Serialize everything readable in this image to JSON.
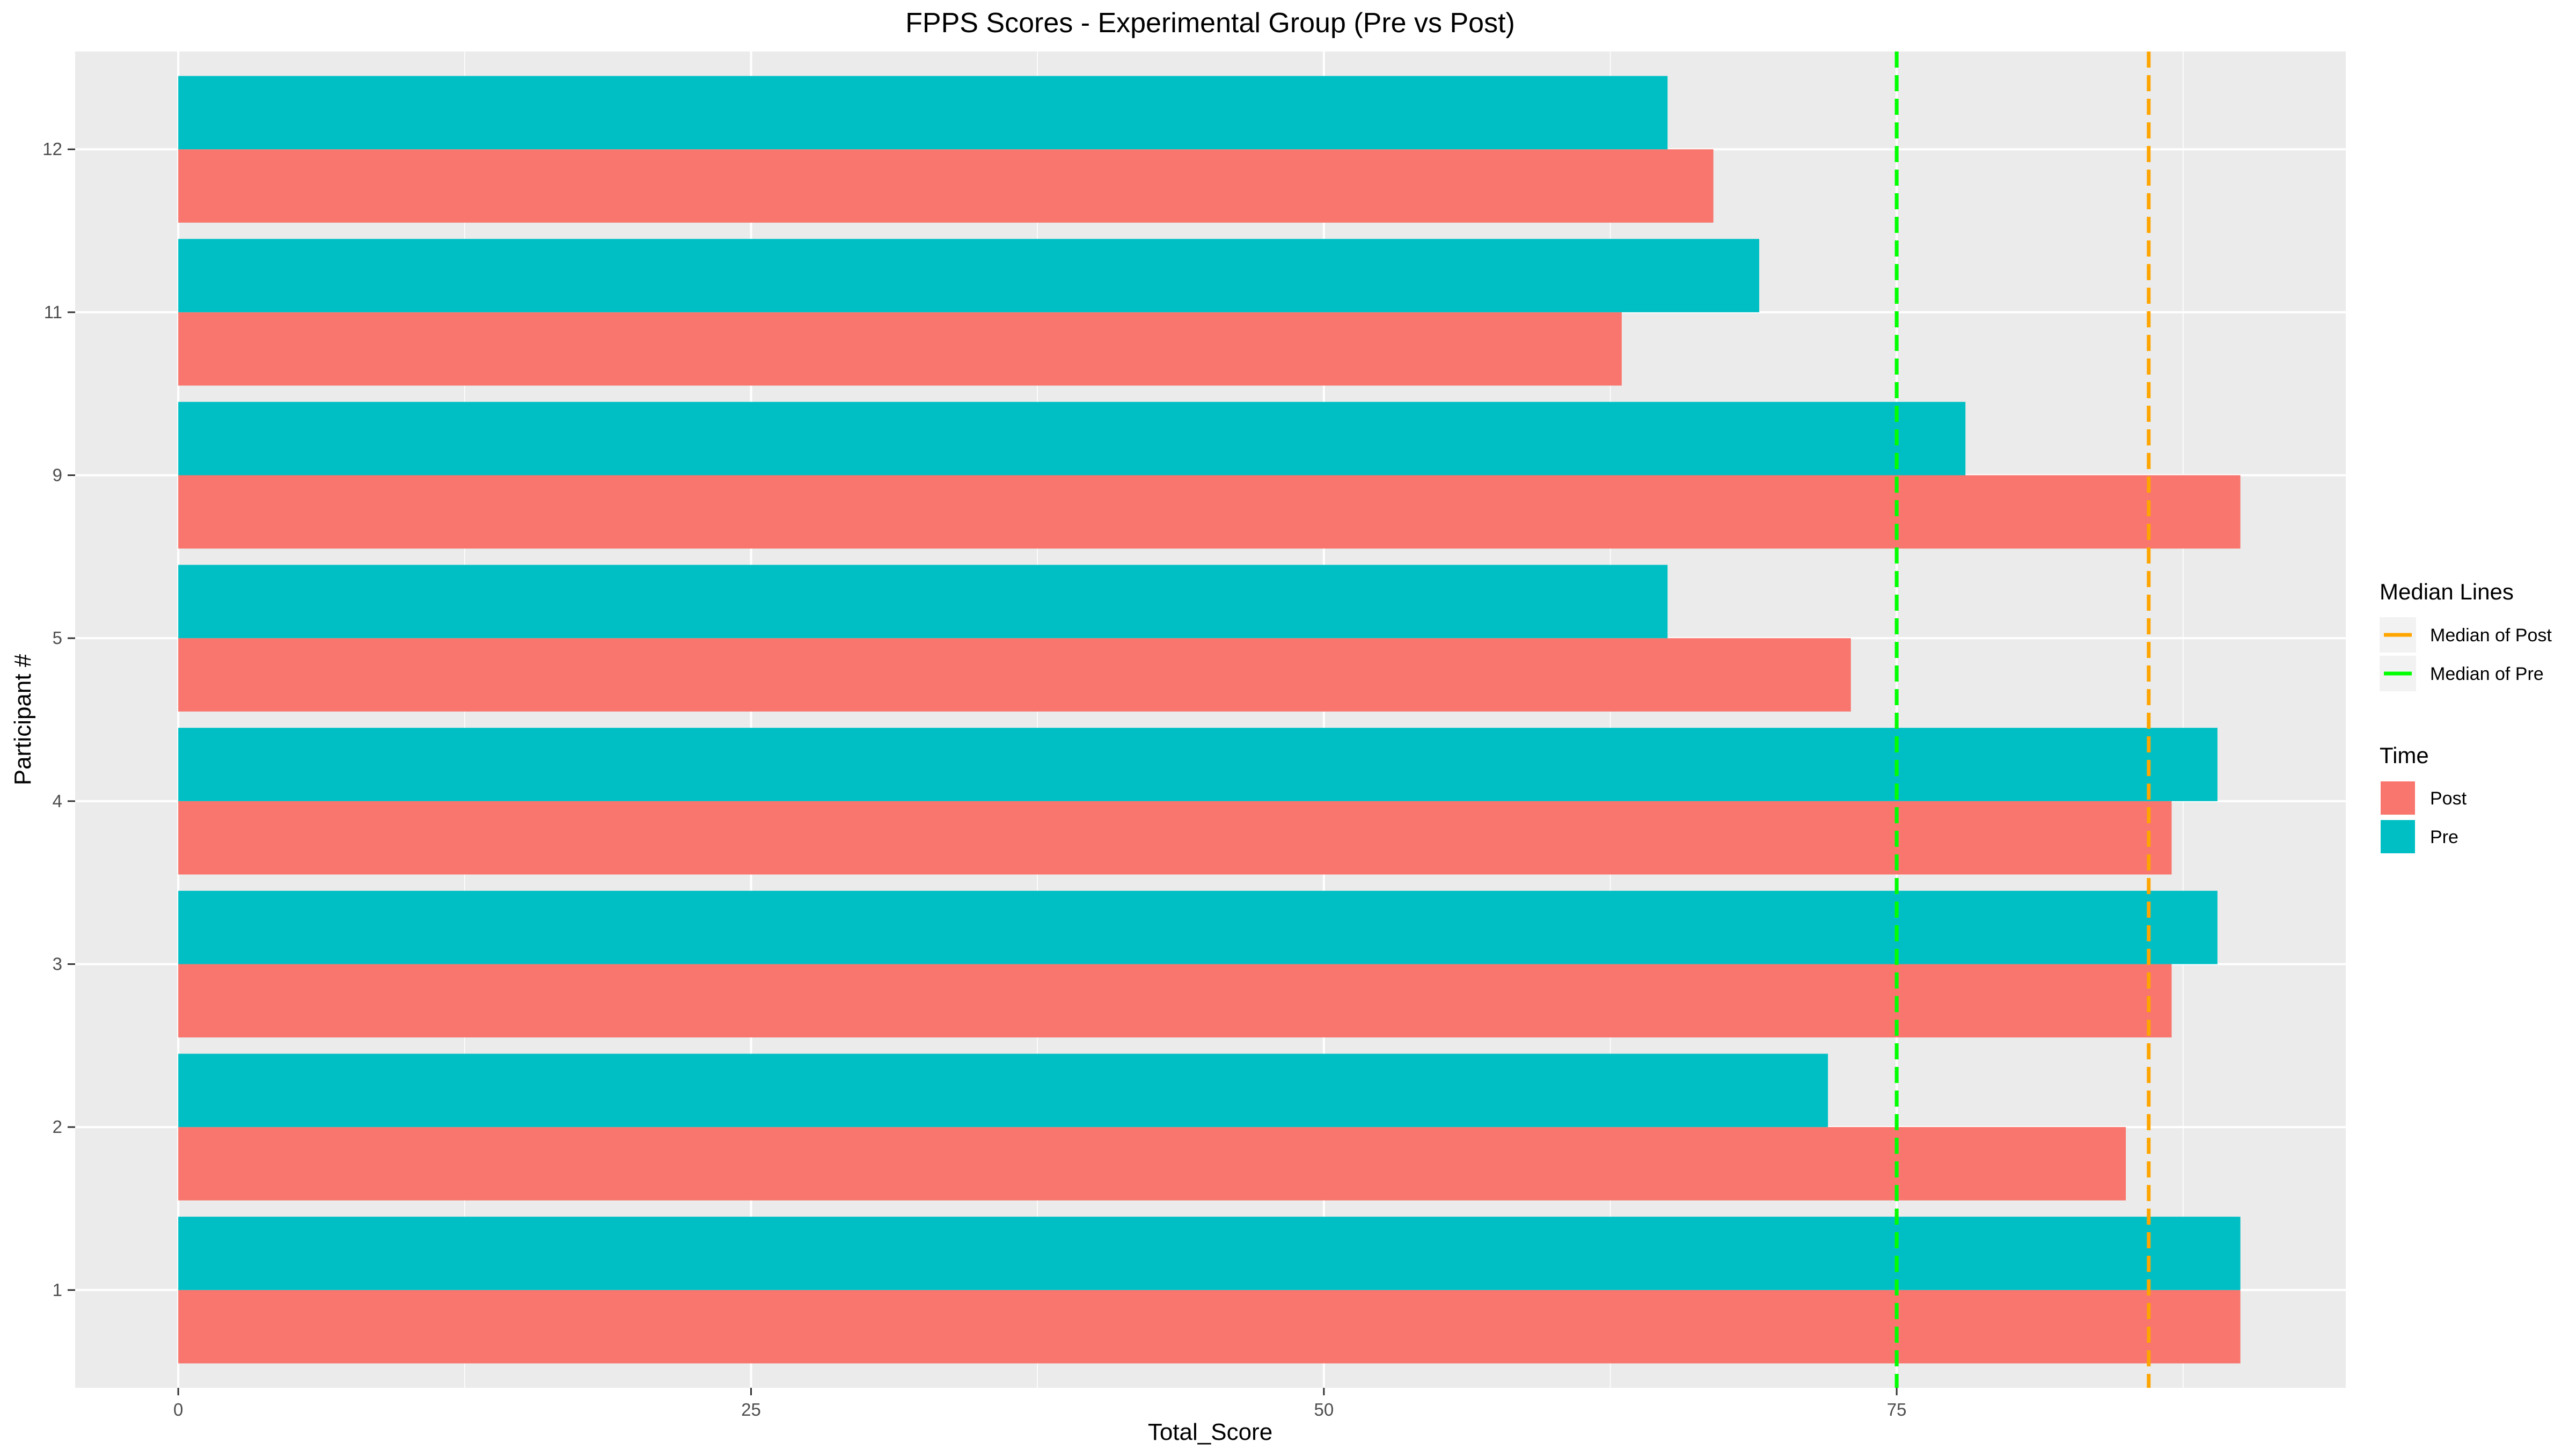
{
  "chart_data": {
    "type": "bar",
    "orientation": "horizontal",
    "title": "FPPS  Scores - Experimental Group (Pre vs Post)",
    "xlabel": "Total_Score",
    "ylabel": "Participant #",
    "xlim": [
      -4.5,
      94.6
    ],
    "x_ticks": [
      0,
      25,
      50,
      75
    ],
    "categories": [
      "1",
      "2",
      "3",
      "4",
      "5",
      "9",
      "11",
      "12"
    ],
    "series": [
      {
        "name": "Post",
        "color": "#F8766D",
        "values": [
          90,
          85,
          87,
          87,
          73,
          90,
          63,
          67
        ]
      },
      {
        "name": "Pre",
        "color": "#00BFC4",
        "values": [
          90,
          72,
          89,
          89,
          65,
          78,
          69,
          65
        ]
      }
    ],
    "reference_lines": [
      {
        "name": "Median of Post",
        "value": 86,
        "color": "#FFA500",
        "style": "dashed"
      },
      {
        "name": "Median of Pre",
        "value": 75,
        "color": "#00FF00",
        "style": "dashed"
      }
    ],
    "grid": true,
    "legend_position": "right",
    "legends": [
      {
        "title": "Median Lines",
        "items": [
          "Median of Post",
          "Median of Pre"
        ]
      },
      {
        "title": "Time",
        "items": [
          "Post",
          "Pre"
        ]
      }
    ]
  }
}
